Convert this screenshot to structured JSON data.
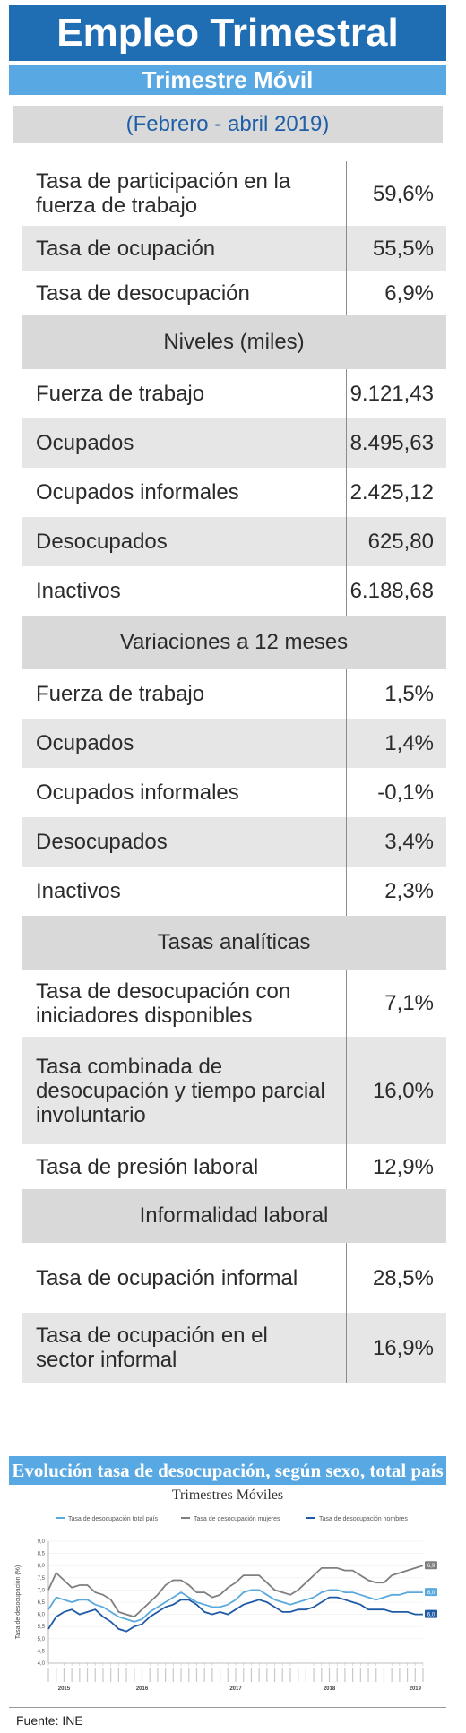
{
  "header": {
    "title": "Empleo Trimestral",
    "subtitle": "Trimestre Móvil",
    "period": "(Febrero - abril 2019)"
  },
  "rates": [
    {
      "label": "Tasa de participación en la fuerza de trabajo",
      "value": "59,6%"
    },
    {
      "label": "Tasa de ocupación",
      "value": "55,5%"
    },
    {
      "label": "Tasa de desocupación",
      "value": "6,9%"
    }
  ],
  "levels": {
    "title": "Niveles (miles)",
    "items": [
      {
        "label": "Fuerza de trabajo",
        "value": "9.121,43"
      },
      {
        "label": "Ocupados",
        "value": "8.495,63"
      },
      {
        "label": "Ocupados informales",
        "value": "2.425,12"
      },
      {
        "label": "Desocupados",
        "value": "625,80"
      },
      {
        "label": "Inactivos",
        "value": "6.188,68"
      }
    ]
  },
  "variations": {
    "title": "Variaciones a 12 meses",
    "items": [
      {
        "label": "Fuerza de trabajo",
        "value": "1,5%"
      },
      {
        "label": "Ocupados",
        "value": "1,4%"
      },
      {
        "label": "Ocupados informales",
        "value": "-0,1%"
      },
      {
        "label": "Desocupados",
        "value": "3,4%"
      },
      {
        "label": "Inactivos",
        "value": "2,3%"
      }
    ]
  },
  "analytic": {
    "title": "Tasas analíticas",
    "items": [
      {
        "label": "Tasa de desocupación con iniciadores disponibles",
        "value": "7,1%"
      },
      {
        "label": "Tasa combinada de desocupación y tiempo parcial involuntario",
        "value": "16,0%"
      },
      {
        "label": "Tasa de presión laboral",
        "value": "12,9%"
      }
    ]
  },
  "informality": {
    "title": "Informalidad laboral",
    "items": [
      {
        "label": "Tasa de ocupación informal",
        "value": "28,5%"
      },
      {
        "label": "Tasa de ocupación en el sector informal",
        "value": "16,9%"
      }
    ]
  },
  "chart_data": {
    "type": "line",
    "title": "Evolución tasa de desocupación, según sexo, total país",
    "subtitle": "Trimestres Móviles",
    "ylabel": "Tasa de desocupación (%)",
    "ylim": [
      4.0,
      9.0
    ],
    "yticks": [
      "4,0",
      "4,5",
      "5,0",
      "5,5",
      "6,0",
      "6,5",
      "7,0",
      "7,5",
      "8,0",
      "8,5",
      "9,0"
    ],
    "years": [
      "2015",
      "2016",
      "2017",
      "2018",
      "2019"
    ],
    "legend_position": "top",
    "series": [
      {
        "name": "Tasa de desocupación total país",
        "color": "#5aa9dd",
        "values": [
          6.2,
          6.7,
          6.6,
          6.5,
          6.6,
          6.6,
          6.4,
          6.3,
          6.1,
          5.9,
          5.8,
          5.7,
          5.8,
          6.1,
          6.3,
          6.5,
          6.7,
          6.9,
          6.7,
          6.5,
          6.4,
          6.3,
          6.3,
          6.4,
          6.6,
          6.9,
          7.0,
          7.0,
          6.8,
          6.6,
          6.5,
          6.4,
          6.5,
          6.6,
          6.7,
          6.9,
          7.0,
          7.0,
          6.9,
          6.9,
          6.8,
          6.7,
          6.6,
          6.7,
          6.8,
          6.8,
          6.9,
          6.9,
          6.9
        ]
      },
      {
        "name": "Tasa de desocupación mujeres",
        "color": "#7f7f7f",
        "values": [
          7.0,
          7.7,
          7.4,
          7.1,
          7.2,
          7.2,
          6.9,
          6.8,
          6.6,
          6.1,
          6.0,
          5.9,
          6.2,
          6.5,
          6.8,
          7.2,
          7.4,
          7.4,
          7.2,
          6.9,
          6.9,
          6.7,
          6.8,
          7.1,
          7.3,
          7.6,
          7.6,
          7.6,
          7.3,
          7.0,
          6.9,
          6.8,
          7.0,
          7.3,
          7.6,
          7.9,
          7.9,
          7.9,
          7.8,
          7.8,
          7.6,
          7.4,
          7.3,
          7.3,
          7.6,
          7.7,
          7.8,
          7.9,
          8.0
        ]
      },
      {
        "name": "Tasa de desocupación hombres",
        "color": "#1f5aa6",
        "values": [
          5.4,
          5.9,
          6.1,
          6.2,
          6.0,
          6.1,
          6.2,
          5.9,
          5.7,
          5.4,
          5.3,
          5.5,
          5.6,
          5.9,
          6.1,
          6.3,
          6.4,
          6.6,
          6.6,
          6.4,
          6.1,
          6.0,
          6.1,
          6.0,
          6.2,
          6.4,
          6.5,
          6.6,
          6.5,
          6.3,
          6.1,
          6.1,
          6.2,
          6.2,
          6.3,
          6.5,
          6.7,
          6.7,
          6.6,
          6.5,
          6.4,
          6.2,
          6.2,
          6.2,
          6.1,
          6.1,
          6.1,
          6.0,
          6.0
        ]
      }
    ],
    "end_labels": [
      "8,0",
      "6,9",
      "6,0"
    ]
  },
  "footer": {
    "source": "Fuente: INE"
  }
}
